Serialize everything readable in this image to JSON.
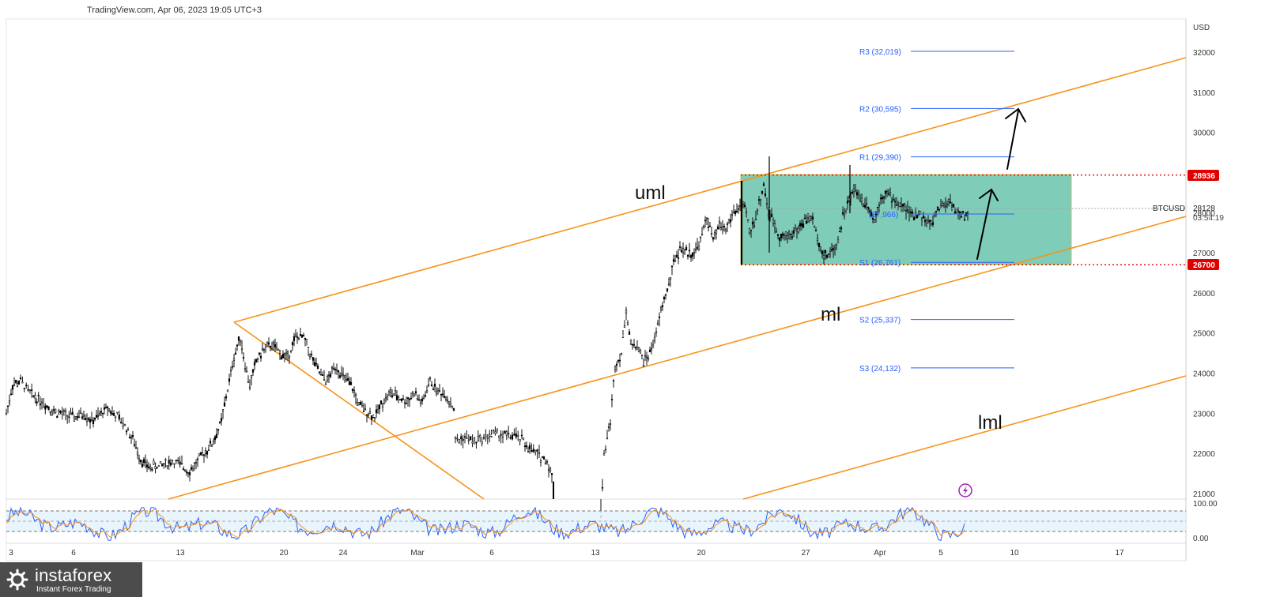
{
  "header": {
    "source": "TradingView.com, Apr 06, 2023 19:05 UTC+3"
  },
  "logo": {
    "name": "instaforex",
    "tagline": "Instant Forex Trading",
    "icon": "gear-logo-icon"
  },
  "colors": {
    "channel": "#f7931a",
    "candle": "#000000",
    "box_fill": "#7fccb8",
    "pivot": "#2962ff",
    "level_line": "#e00000",
    "stoch_k": "#2962ff",
    "stoch_d": "#f7931a",
    "stoch_band": "#e3f2fd",
    "signal_icon": "#9c27b0"
  },
  "chart_data": {
    "type": "candlestick",
    "symbol": "BTCUSD",
    "currency": "USD",
    "last_price": "28128",
    "countdown": "03:54:19",
    "price_axis_labels": [
      "32000",
      "31000",
      "30000",
      "29000",
      "28000",
      "27000",
      "26000",
      "25000",
      "24000",
      "23000",
      "22000",
      "21000"
    ],
    "time_axis_labels": [
      "3",
      "6",
      "13",
      "20",
      "24",
      "Mar",
      "6",
      "13",
      "20",
      "27",
      "Apr",
      "5",
      "10",
      "17"
    ],
    "channel_labels": [
      "uml",
      "ml",
      "lml"
    ],
    "pivot_levels": [
      {
        "label": "R3 (32,019)",
        "value": 32019
      },
      {
        "label": "R2 (30,595)",
        "value": 30595
      },
      {
        "label": "R1 (29,390)",
        "value": 29390
      },
      {
        "label": "(27,966)",
        "value": 27966
      },
      {
        "label": "S1 (26,761)",
        "value": 26761
      },
      {
        "label": "S2 (25,337)",
        "value": 25337
      },
      {
        "label": "S3 (24,132)",
        "value": 24132
      }
    ],
    "key_levels": [
      {
        "label": "28936",
        "value": 28936
      },
      {
        "label": "26700",
        "value": 26700
      }
    ],
    "range_box": {
      "top": 28936,
      "bottom": 26700
    },
    "price_path": [
      [
        0,
        23000
      ],
      [
        8,
        23700
      ],
      [
        18,
        23800
      ],
      [
        30,
        23500
      ],
      [
        45,
        23300
      ],
      [
        60,
        23050
      ],
      [
        75,
        22950
      ],
      [
        88,
        22900
      ],
      [
        98,
        23000
      ],
      [
        108,
        22800
      ],
      [
        118,
        22950
      ],
      [
        128,
        23150
      ],
      [
        138,
        22950
      ],
      [
        150,
        22700
      ],
      [
        160,
        22350
      ],
      [
        170,
        21850
      ],
      [
        180,
        21650
      ],
      [
        195,
        21700
      ],
      [
        210,
        21800
      ],
      [
        222,
        21700
      ],
      [
        232,
        21550
      ],
      [
        242,
        21800
      ],
      [
        252,
        22050
      ],
      [
        262,
        22300
      ],
      [
        272,
        22800
      ],
      [
        280,
        23600
      ],
      [
        288,
        24400
      ],
      [
        296,
        24900
      ],
      [
        302,
        24200
      ],
      [
        308,
        23700
      ],
      [
        316,
        24300
      ],
      [
        326,
        24600
      ],
      [
        336,
        24700
      ],
      [
        346,
        24500
      ],
      [
        356,
        24400
      ],
      [
        366,
        24900
      ],
      [
        376,
        24900
      ],
      [
        386,
        24400
      ],
      [
        396,
        24000
      ],
      [
        406,
        23800
      ],
      [
        416,
        24200
      ],
      [
        426,
        23900
      ],
      [
        436,
        23700
      ],
      [
        446,
        23200
      ],
      [
        456,
        23050
      ],
      [
        466,
        22900
      ],
      [
        476,
        23300
      ],
      [
        486,
        23500
      ],
      [
        496,
        23400
      ],
      [
        506,
        23300
      ],
      [
        516,
        23500
      ],
      [
        526,
        23250
      ],
      [
        536,
        23800
      ],
      [
        546,
        23550
      ],
      [
        556,
        23450
      ],
      [
        566,
        23100
      ],
      [
        568,
        22300
      ],
      [
        580,
        22400
      ],
      [
        592,
        22300
      ],
      [
        604,
        22400
      ],
      [
        616,
        22500
      ],
      [
        628,
        22450
      ],
      [
        640,
        22450
      ],
      [
        652,
        22350
      ],
      [
        662,
        22100
      ],
      [
        674,
        21950
      ],
      [
        684,
        21800
      ],
      [
        692,
        21300
      ],
      [
        692,
        20500
      ],
      [
        752,
        20500
      ],
      [
        756,
        22000
      ],
      [
        764,
        22800
      ],
      [
        770,
        24200
      ],
      [
        778,
        24500
      ],
      [
        784,
        25600
      ],
      [
        790,
        24700
      ],
      [
        798,
        24700
      ],
      [
        806,
        24300
      ],
      [
        814,
        24500
      ],
      [
        822,
        25000
      ],
      [
        830,
        25700
      ],
      [
        838,
        26200
      ],
      [
        846,
        26900
      ],
      [
        854,
        27100
      ],
      [
        862,
        27000
      ],
      [
        870,
        27000
      ],
      [
        878,
        27300
      ],
      [
        886,
        27900
      ],
      [
        894,
        27300
      ],
      [
        902,
        27700
      ],
      [
        910,
        27600
      ],
      [
        920,
        28000
      ],
      [
        930,
        28200
      ],
      [
        936,
        28000
      ],
      [
        940,
        27500
      ],
      [
        946,
        27800
      ],
      [
        952,
        28200
      ],
      [
        958,
        28700
      ],
      [
        964,
        28000
      ],
      [
        970,
        27800
      ],
      [
        978,
        27400
      ],
      [
        986,
        27400
      ],
      [
        994,
        27500
      ],
      [
        1002,
        27600
      ],
      [
        1010,
        27800
      ],
      [
        1018,
        27900
      ],
      [
        1026,
        27400
      ],
      [
        1034,
        26900
      ],
      [
        1042,
        27000
      ],
      [
        1050,
        27200
      ],
      [
        1058,
        27900
      ],
      [
        1066,
        28300
      ],
      [
        1074,
        28600
      ],
      [
        1082,
        28300
      ],
      [
        1090,
        28200
      ],
      [
        1098,
        27800
      ],
      [
        1106,
        28400
      ],
      [
        1114,
        28500
      ],
      [
        1122,
        28300
      ],
      [
        1130,
        28200
      ],
      [
        1138,
        28100
      ],
      [
        1146,
        27900
      ],
      [
        1154,
        28000
      ],
      [
        1162,
        27800
      ],
      [
        1170,
        27700
      ],
      [
        1178,
        28100
      ],
      [
        1186,
        28200
      ],
      [
        1194,
        28300
      ],
      [
        1202,
        28000
      ],
      [
        1210,
        27900
      ],
      [
        1218,
        28000
      ]
    ]
  },
  "stochastic": {
    "labels": [
      "100.00",
      "0.00"
    ],
    "upper_band": 80,
    "lower_band": 20
  }
}
